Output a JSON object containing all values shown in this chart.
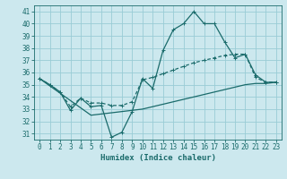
{
  "xlabel": "Humidex (Indice chaleur)",
  "bg_color": "#cce8ee",
  "grid_color": "#99ccd6",
  "line_color": "#1a6b6b",
  "xlim": [
    -0.5,
    23.5
  ],
  "ylim": [
    30.5,
    41.5
  ],
  "xticks": [
    0,
    1,
    2,
    3,
    4,
    5,
    6,
    7,
    8,
    9,
    10,
    11,
    12,
    13,
    14,
    15,
    16,
    17,
    18,
    19,
    20,
    21,
    22,
    23
  ],
  "yticks": [
    31,
    32,
    33,
    34,
    35,
    36,
    37,
    38,
    39,
    40,
    41
  ],
  "curve1_x": [
    0,
    1,
    2,
    3,
    4,
    5,
    6,
    7,
    8,
    9,
    10,
    11,
    12,
    13,
    14,
    15,
    16,
    17,
    18,
    19,
    20,
    21,
    22,
    23
  ],
  "curve1_y": [
    35.5,
    35.0,
    34.4,
    32.9,
    33.9,
    33.2,
    33.3,
    30.7,
    31.1,
    32.8,
    35.5,
    34.7,
    37.8,
    39.5,
    40.0,
    41.0,
    40.0,
    40.0,
    38.5,
    37.2,
    37.5,
    35.8,
    35.2,
    35.2
  ],
  "curve2_x": [
    0,
    1,
    2,
    3,
    4,
    5,
    6,
    7,
    8,
    9,
    10,
    11,
    12,
    13,
    14,
    15,
    16,
    17,
    18,
    19,
    20,
    21,
    22,
    23
  ],
  "curve2_y": [
    35.5,
    35.0,
    34.4,
    33.2,
    33.9,
    33.5,
    33.5,
    33.3,
    33.3,
    33.6,
    35.4,
    35.6,
    35.9,
    36.2,
    36.5,
    36.8,
    37.0,
    37.2,
    37.4,
    37.5,
    37.5,
    35.6,
    35.2,
    35.2
  ],
  "curve3_x": [
    0,
    1,
    2,
    3,
    4,
    5,
    6,
    7,
    8,
    9,
    10,
    11,
    12,
    13,
    14,
    15,
    16,
    17,
    18,
    19,
    20,
    21,
    22,
    23
  ],
  "curve3_y": [
    35.5,
    34.9,
    34.3,
    33.7,
    33.1,
    32.5,
    32.6,
    32.7,
    32.8,
    32.9,
    33.0,
    33.2,
    33.4,
    33.6,
    33.8,
    34.0,
    34.2,
    34.4,
    34.6,
    34.8,
    35.0,
    35.1,
    35.1,
    35.2
  ],
  "tick_fontsize": 5.5,
  "xlabel_fontsize": 6.5
}
